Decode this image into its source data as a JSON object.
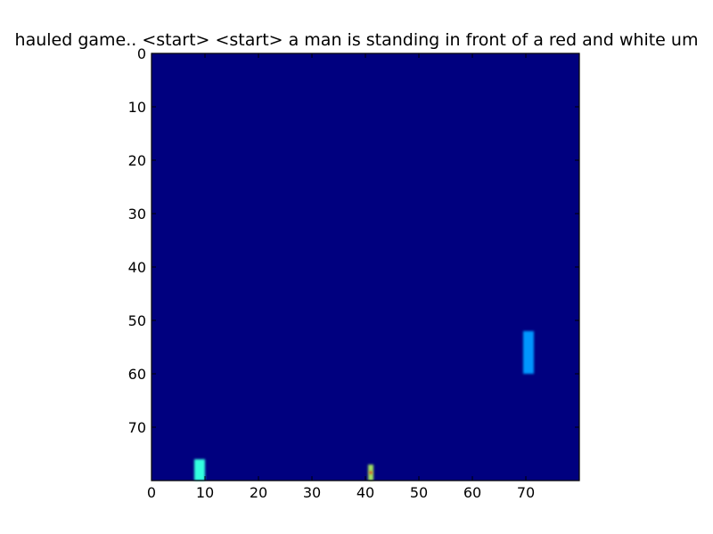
{
  "chart_data": {
    "type": "heatmap",
    "title": "hauled game.. <start> <start> a man is standing in front of a red and white um",
    "xlabel": "",
    "ylabel": "",
    "xlim": [
      0,
      80
    ],
    "ylim": [
      0,
      80
    ],
    "y_inverted": true,
    "grid": false,
    "colormap": "jet",
    "background_color": "#00007f",
    "xticks": [
      0,
      10,
      20,
      30,
      40,
      50,
      60,
      70
    ],
    "yticks": [
      0,
      10,
      20,
      30,
      40,
      50,
      60,
      70
    ],
    "objects": [
      {
        "name": "paddle-right",
        "x_range": [
          69.5,
          71.5
        ],
        "y_range": [
          52,
          60
        ],
        "color": "#0096ff"
      },
      {
        "name": "paddle-left",
        "x_range": [
          8,
          10
        ],
        "y_range": [
          76,
          80
        ],
        "color": "#33ffe0"
      },
      {
        "name": "ball",
        "x_range": [
          40.5,
          41.5
        ],
        "y_range": [
          77,
          80
        ],
        "color": "#a0e060"
      }
    ]
  }
}
